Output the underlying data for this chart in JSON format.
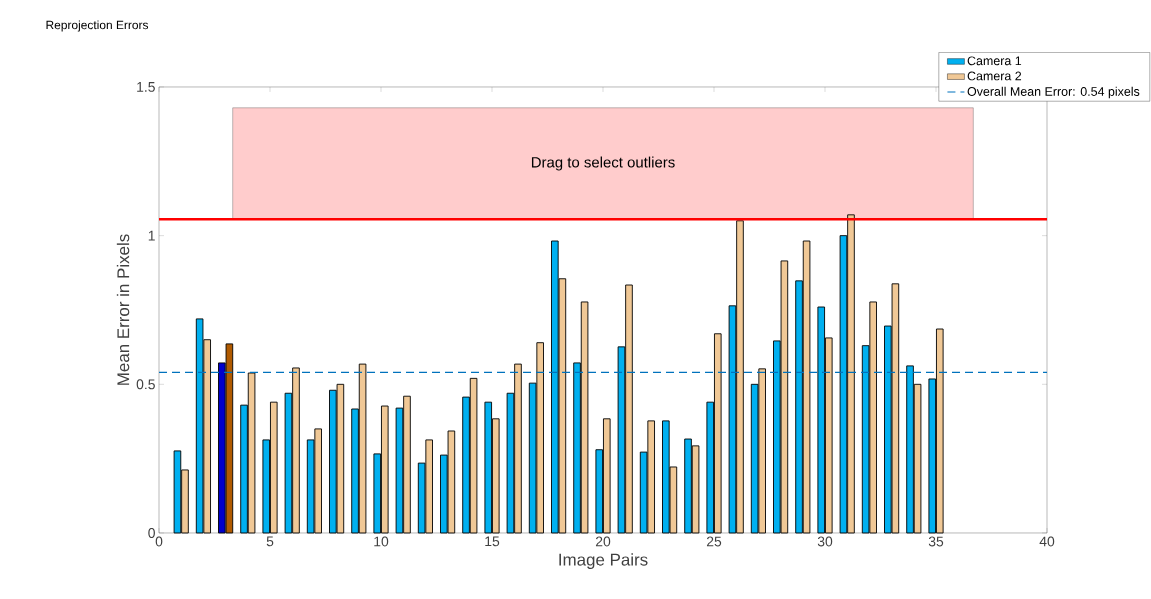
{
  "chart_data": {
    "type": "bar",
    "title": "Reprojection Errors",
    "xlabel": "Image Pairs",
    "ylabel": "Mean Error in Pixels",
    "x": [
      1,
      2,
      3,
      4,
      5,
      6,
      7,
      8,
      9,
      10,
      11,
      12,
      13,
      14,
      15,
      16,
      17,
      18,
      19,
      20,
      21,
      22,
      23,
      24,
      25,
      26,
      27,
      28,
      29,
      30,
      31,
      32,
      33,
      34,
      35
    ],
    "series": [
      {
        "name": "Camera 1",
        "color": "#00b0f0",
        "colors": [
          "#00b0f0",
          "#00b0f0",
          "#0000cc",
          "#00b0f0",
          "#00b0f0",
          "#00b0f0",
          "#00b0f0",
          "#00b0f0",
          "#00b0f0",
          "#00b0f0",
          "#00b0f0",
          "#00b0f0",
          "#00b0f0",
          "#00b0f0",
          "#00b0f0",
          "#00b0f0",
          "#00b0f0",
          "#00b0f0",
          "#00b0f0",
          "#00b0f0",
          "#00b0f0",
          "#00b0f0",
          "#00b0f0",
          "#00b0f0",
          "#00b0f0",
          "#00b0f0",
          "#00b0f0",
          "#00b0f0",
          "#00b0f0",
          "#00b0f0",
          "#00b0f0",
          "#00b0f0",
          "#00b0f0",
          "#00b0f0",
          "#00b0f0"
        ],
        "values": [
          0.276,
          0.72,
          0.572,
          0.43,
          0.313,
          0.47,
          0.313,
          0.48,
          0.417,
          0.266,
          0.42,
          0.235,
          0.262,
          0.457,
          0.44,
          0.47,
          0.504,
          0.982,
          0.572,
          0.28,
          0.626,
          0.272,
          0.377,
          0.316,
          0.44,
          0.764,
          0.5,
          0.646,
          0.848,
          0.76,
          1.0,
          0.63,
          0.696,
          0.562,
          0.518
        ]
      },
      {
        "name": "Camera 2",
        "color": "#f0c896",
        "colors": [
          "#f0c896",
          "#f0c896",
          "#b05a00",
          "#f0c896",
          "#f0c896",
          "#f0c896",
          "#f0c896",
          "#f0c896",
          "#f0c896",
          "#f0c896",
          "#f0c896",
          "#f0c896",
          "#f0c896",
          "#f0c896",
          "#f0c896",
          "#f0c896",
          "#f0c896",
          "#f0c896",
          "#f0c896",
          "#f0c896",
          "#f0c896",
          "#f0c896",
          "#f0c896",
          "#f0c896",
          "#f0c896",
          "#f0c896",
          "#f0c896",
          "#f0c896",
          "#f0c896",
          "#f0c896",
          "#f0c896",
          "#f0c896",
          "#f0c896",
          "#f0c896",
          "#f0c896"
        ],
        "values": [
          0.212,
          0.65,
          0.636,
          0.538,
          0.44,
          0.555,
          0.35,
          0.5,
          0.568,
          0.427,
          0.46,
          0.313,
          0.343,
          0.52,
          0.384,
          0.568,
          0.64,
          0.855,
          0.777,
          0.384,
          0.834,
          0.377,
          0.222,
          0.293,
          0.67,
          1.05,
          0.552,
          0.915,
          0.982,
          0.656,
          1.07,
          0.777,
          0.838,
          0.5,
          0.686
        ]
      }
    ],
    "xlim": [
      0,
      40
    ],
    "xticks": [
      0,
      5,
      10,
      15,
      20,
      25,
      30,
      35,
      40
    ],
    "ylim": [
      0,
      1.5
    ],
    "yticks": [
      0,
      0.5,
      1,
      1.5
    ],
    "ref_lines": [
      {
        "axis": "y",
        "value": 0.54,
        "label": "Overall Mean Error: 0.54 pixels",
        "color": "#0072bd",
        "line_style": "dashed"
      },
      {
        "axis": "y",
        "value": 1.055,
        "color": "#ff0000",
        "line_style": "solid"
      }
    ],
    "bands": [
      {
        "axis": "y",
        "from": 1.055,
        "to": 1.43,
        "label": "Drag to select outliers",
        "color": "#ffcccc"
      }
    ],
    "legend": "top right",
    "grid": false
  }
}
